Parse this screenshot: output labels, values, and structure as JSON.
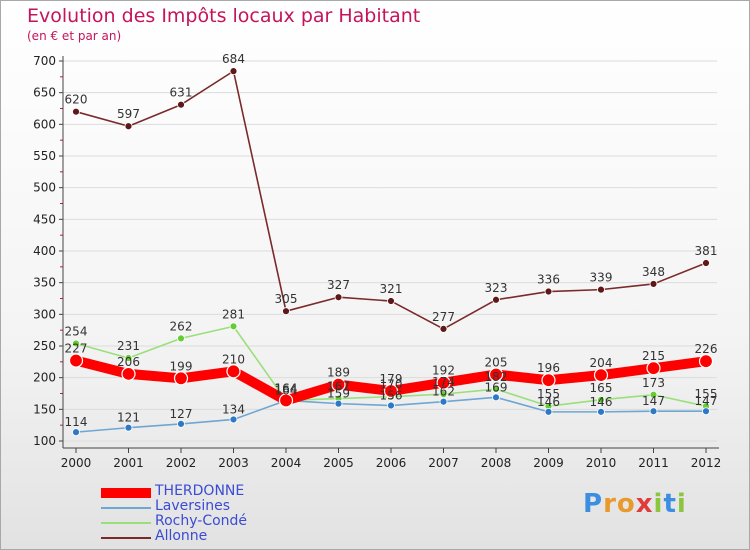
{
  "title": "Evolution des Impôts locaux par Habitant",
  "subtitle": "(en € et par an)",
  "colors": {
    "title": "#c4145c",
    "axis": "#444444",
    "grid": "#dcdcdc"
  },
  "chart_data": {
    "type": "line",
    "title": "Evolution des Impôts locaux par Habitant",
    "subtitle": "(en € et par an)",
    "xlabel": "",
    "ylabel": "",
    "ylim": [
      100,
      700
    ],
    "yticks": [
      100,
      150,
      200,
      250,
      300,
      350,
      400,
      450,
      500,
      550,
      600,
      650,
      700
    ],
    "grid": "horizontal",
    "legend_position": "bottom-left",
    "categories": [
      "2000",
      "2001",
      "2002",
      "2003",
      "2004",
      "2005",
      "2006",
      "2007",
      "2008",
      "2009",
      "2010",
      "2011",
      "2012"
    ],
    "series": [
      {
        "name": "Allonne",
        "color": "#7a2a2a",
        "marker_fill": "#5e1818",
        "values": [
          620,
          597,
          631,
          684,
          305,
          327,
          321,
          277,
          323,
          336,
          339,
          348,
          381
        ]
      },
      {
        "name": "Rochy-Condé",
        "color": "#99e07a",
        "marker_fill": "#66cc33",
        "values": [
          254,
          231,
          262,
          281,
          164,
          167,
          170,
          174,
          182,
          155,
          165,
          173,
          155
        ]
      },
      {
        "name": "Laversines",
        "color": "#6ea6d4",
        "marker_fill": "#2e78c8",
        "values": [
          114,
          121,
          127,
          134,
          164,
          159,
          156,
          162,
          169,
          146,
          146,
          147,
          147
        ]
      },
      {
        "name": "THERDONNE",
        "color": "#ff0000",
        "marker_fill": "#ff0000",
        "values": [
          227,
          206,
          199,
          210,
          164,
          189,
          179,
          192,
          205,
          196,
          204,
          215,
          226
        ]
      }
    ]
  },
  "legend": [
    {
      "name": "THERDONNE",
      "color": "#ff0000"
    },
    {
      "name": "Laversines",
      "color": "#6ea6d4"
    },
    {
      "name": "Rochy-Condé",
      "color": "#99e07a"
    },
    {
      "name": "Allonne",
      "color": "#7a2a2a"
    }
  ],
  "logo": {
    "letters": [
      "P",
      "r",
      "o",
      "x",
      "i",
      "t",
      "i"
    ],
    "colors": [
      "#3c8ee0",
      "#e89a2c",
      "#e89a2c",
      "#e03c3c",
      "#8cc63f",
      "#3c8ee0",
      "#8cc63f"
    ]
  }
}
